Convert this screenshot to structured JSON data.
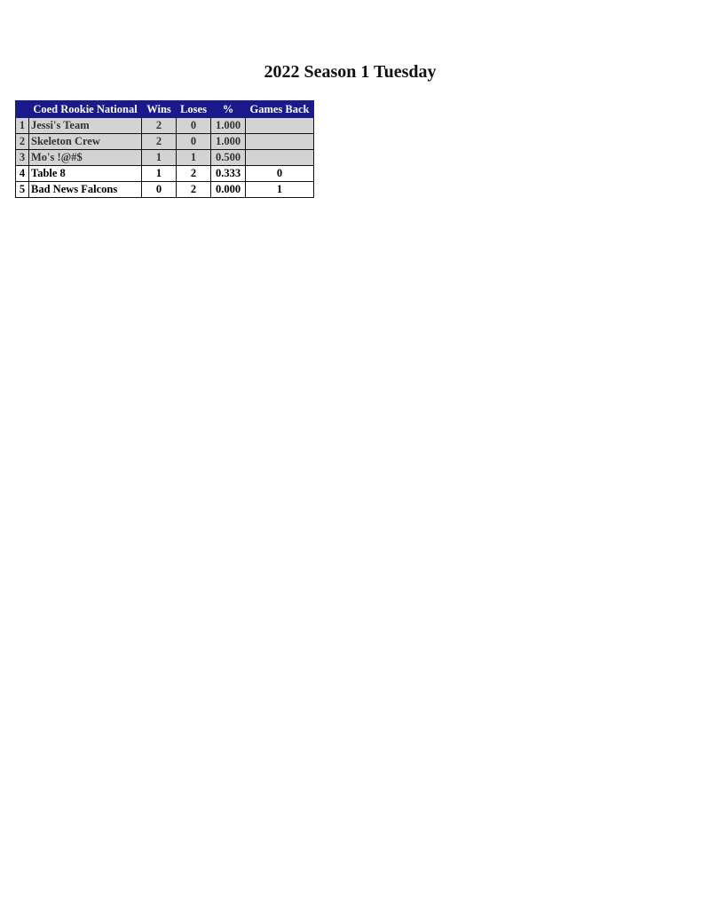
{
  "title": "2022 Season 1 Tuesday",
  "table": {
    "headers": [
      "",
      "Coed Rookie National",
      "Wins",
      "Loses",
      "%",
      "Games Back"
    ],
    "rows": [
      {
        "rank": "1",
        "team": "Jessi's Team",
        "wins": "2",
        "loses": "0",
        "pct": "1.000",
        "gb": "",
        "style": "gray"
      },
      {
        "rank": "2",
        "team": "Skeleton Crew",
        "wins": "2",
        "loses": "0",
        "pct": "1.000",
        "gb": "",
        "style": "gray"
      },
      {
        "rank": "3",
        "team": "Mo's !@#$",
        "wins": "1",
        "loses": "1",
        "pct": "0.500",
        "gb": "",
        "style": "gray"
      },
      {
        "rank": "4",
        "team": "Table 8",
        "wins": "1",
        "loses": "2",
        "pct": "0.333",
        "gb": "0",
        "style": "white"
      },
      {
        "rank": "5",
        "team": "Bad News Falcons",
        "wins": "0",
        "loses": "2",
        "pct": "0.000",
        "gb": "1",
        "style": "white"
      }
    ]
  },
  "colors": {
    "header_bg": "#1a1a8c",
    "gray_row": "#d3d3d3"
  }
}
